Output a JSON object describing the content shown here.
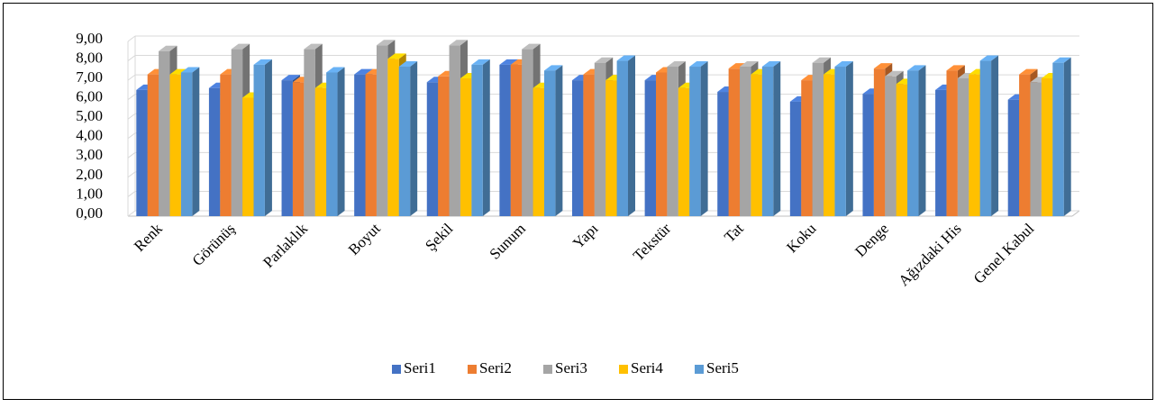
{
  "chart_data": {
    "type": "bar3d",
    "categories": [
      "Renk",
      "Görünüş",
      "Parlaklık",
      "Boyut",
      "Şekil",
      "Sunum",
      "Yapı",
      "Tekstür",
      "Tat",
      "Koku",
      "Denge",
      "Ağızdaki His",
      "Genel Kabul"
    ],
    "series": [
      {
        "name": "Seri1",
        "color": "#4472c4",
        "values": [
          6.5,
          6.6,
          7.0,
          7.3,
          6.9,
          7.8,
          7.0,
          7.0,
          6.4,
          5.9,
          6.3,
          6.5,
          6.0
        ]
      },
      {
        "name": "Seri2",
        "color": "#ed7d31",
        "values": [
          7.3,
          7.3,
          6.9,
          7.3,
          7.2,
          7.8,
          7.3,
          7.4,
          7.6,
          7.0,
          7.6,
          7.5,
          7.3
        ]
      },
      {
        "name": "Seri3",
        "color": "#a5a5a5",
        "values": [
          8.5,
          8.6,
          8.6,
          8.8,
          8.8,
          8.6,
          7.9,
          7.7,
          7.7,
          7.9,
          7.2,
          7.1,
          6.9
        ]
      },
      {
        "name": "Seri4",
        "color": "#ffc000",
        "values": [
          7.3,
          6.1,
          6.6,
          8.1,
          7.1,
          6.6,
          7.0,
          6.6,
          7.3,
          7.3,
          6.8,
          7.3,
          7.1
        ]
      },
      {
        "name": "Seri5",
        "color": "#5b9bd5",
        "values": [
          7.4,
          7.8,
          7.4,
          7.7,
          7.8,
          7.5,
          8.0,
          7.7,
          7.7,
          7.7,
          7.5,
          8.0,
          7.9
        ]
      }
    ],
    "ylim": [
      0,
      9
    ],
    "yticks": [
      {
        "value": 0,
        "label": "0,00"
      },
      {
        "value": 1,
        "label": "1,00"
      },
      {
        "value": 2,
        "label": "2,00"
      },
      {
        "value": 3,
        "label": "3,00"
      },
      {
        "value": 4,
        "label": "4,00"
      },
      {
        "value": 5,
        "label": "5,00"
      },
      {
        "value": 6,
        "label": "6,00"
      },
      {
        "value": 7,
        "label": "7,00"
      },
      {
        "value": 8,
        "label": "8,00"
      },
      {
        "value": 9,
        "label": "9,00"
      }
    ],
    "grid": true,
    "legend": "bottom"
  }
}
